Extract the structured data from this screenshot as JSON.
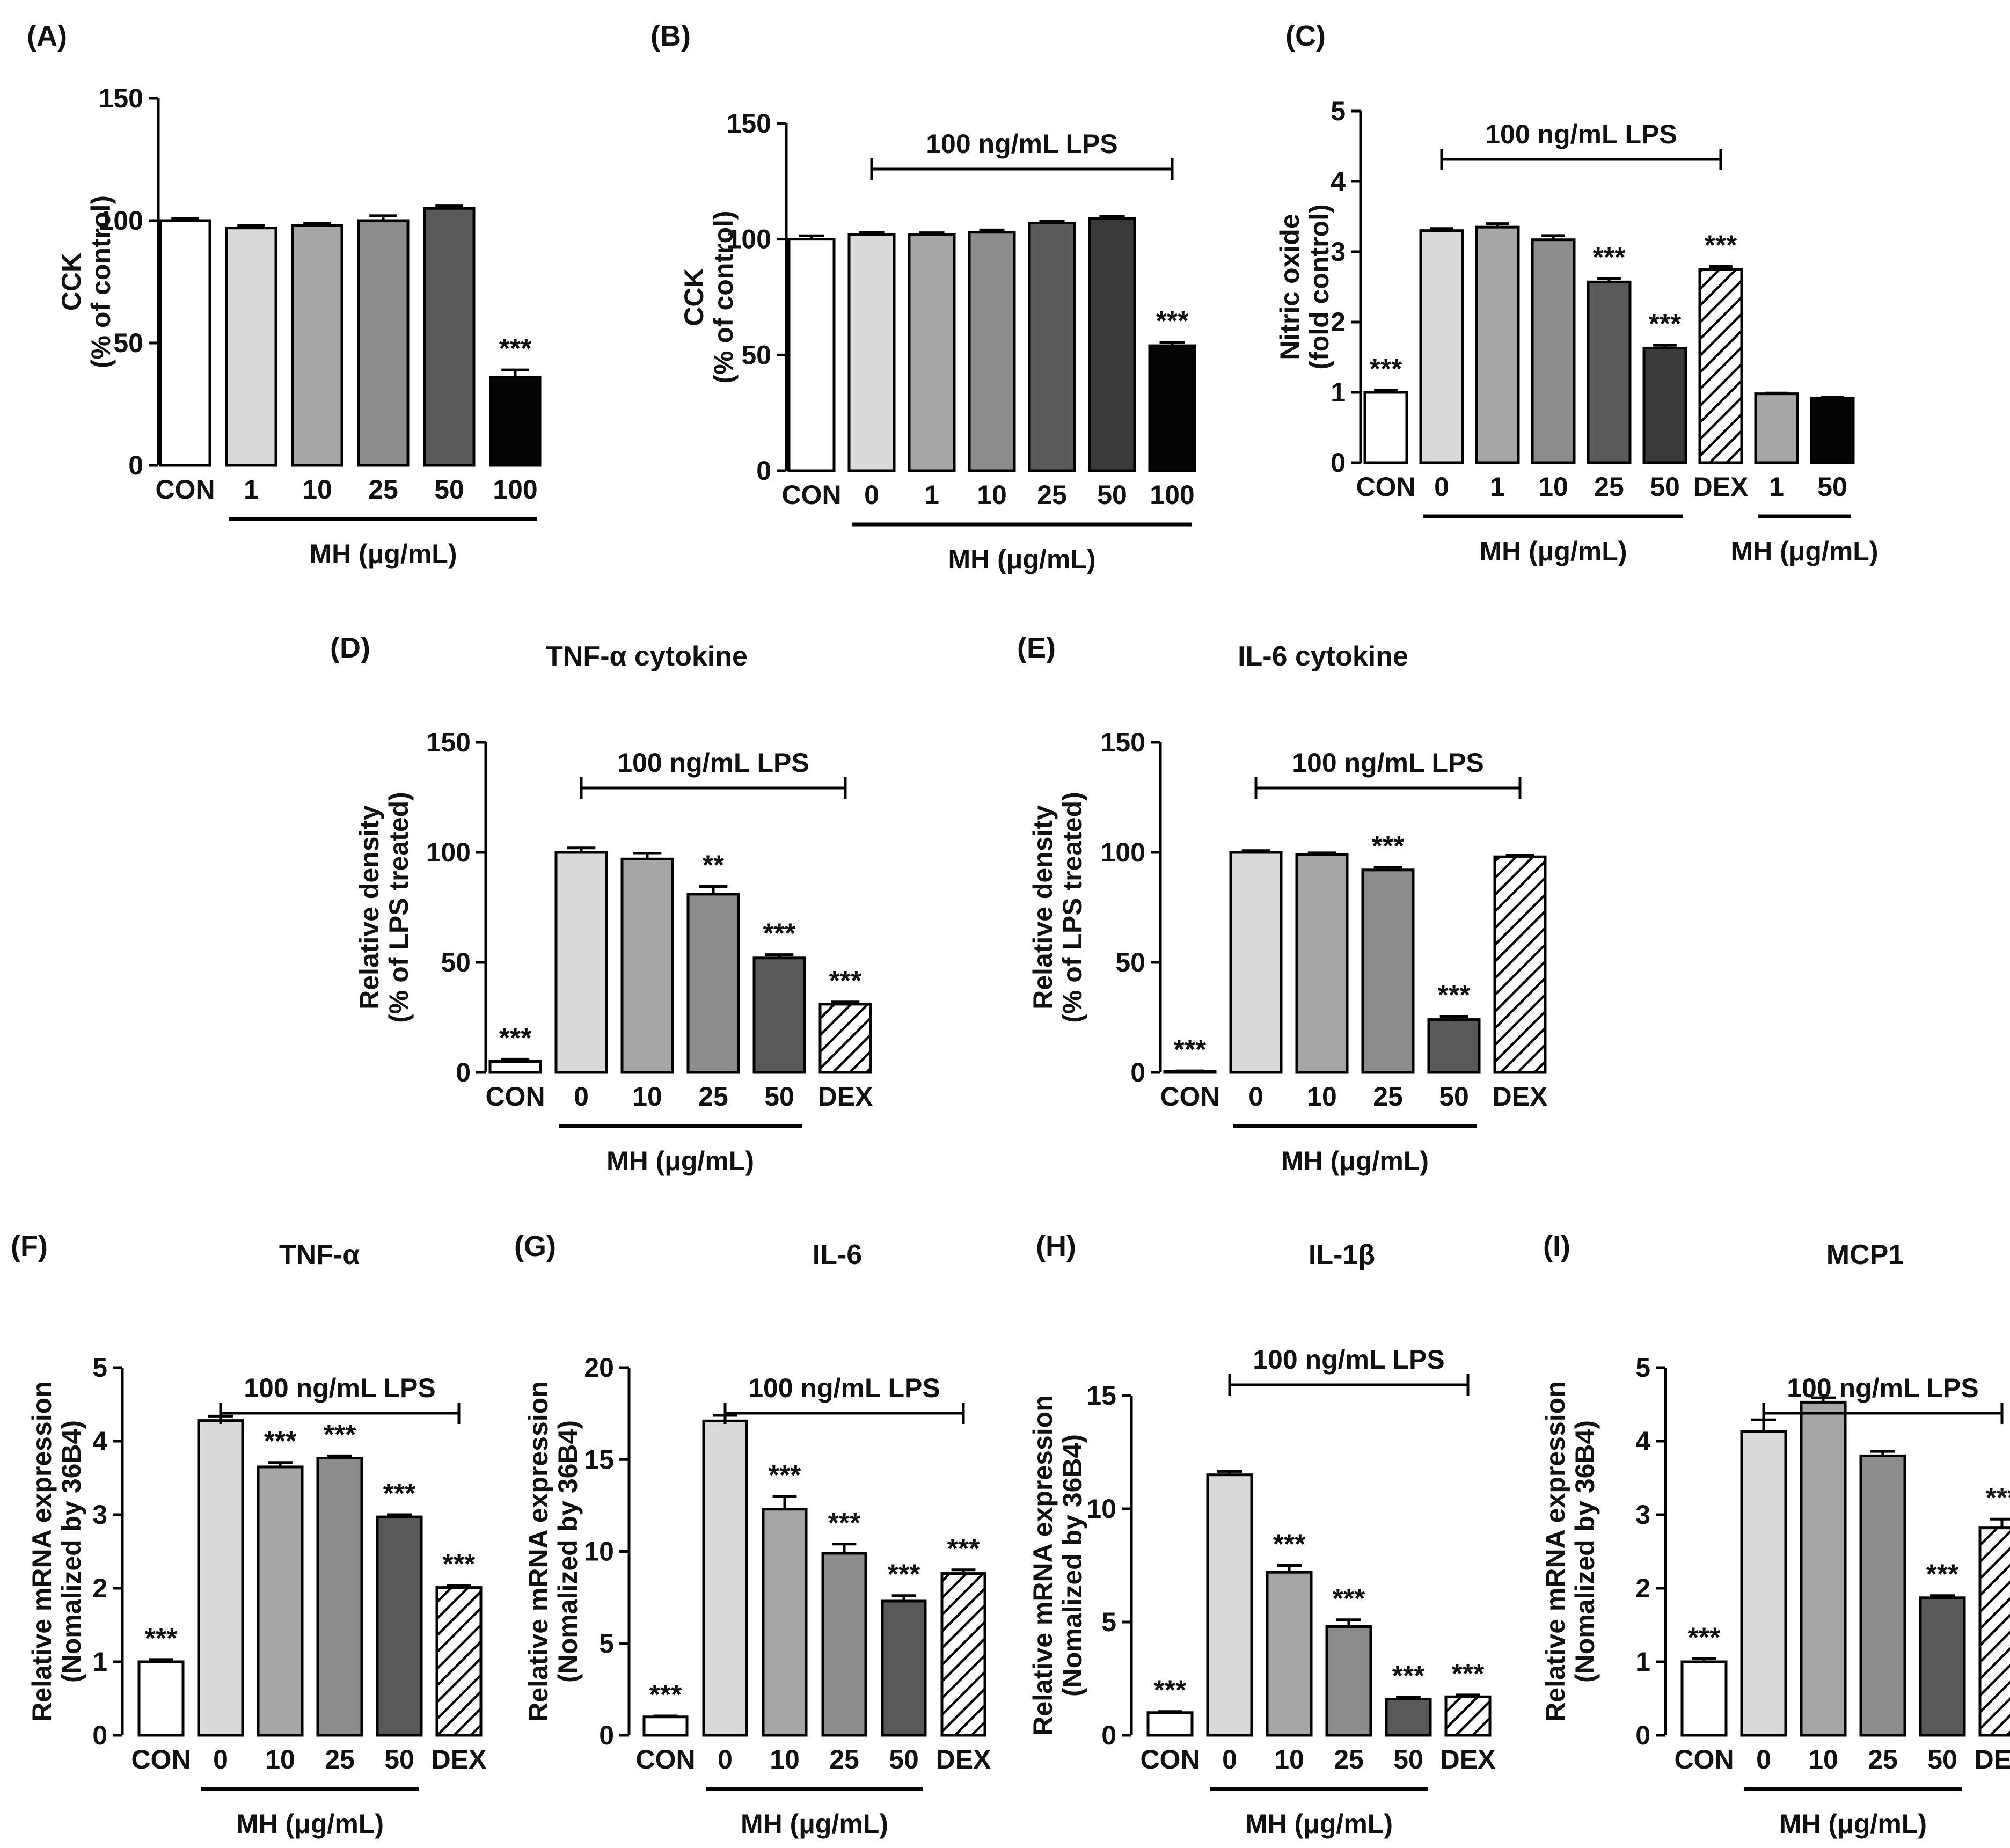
{
  "figure_title": "",
  "colors": {
    "white": "#ffffff",
    "light_gray": "#d9d9d9",
    "mid_gray": "#a6a6a6",
    "gray": "#8c8c8c",
    "dark_gray": "#595959",
    "darker_gray": "#3a3a3a",
    "black": "#050505",
    "axis": "#000000"
  },
  "chart_data": [
    {
      "panel": "(A)",
      "type": "bar",
      "title": "",
      "ylabel_line1": "CCK",
      "ylabel_line2": "(% of control)",
      "ylim": [
        0,
        150
      ],
      "yticks": [
        "0",
        "50",
        "100",
        "150"
      ],
      "categories": [
        "CON",
        "1",
        "10",
        "25",
        "50",
        "100"
      ],
      "values": [
        100,
        97,
        98,
        100,
        105,
        36
      ],
      "errors": [
        1,
        1,
        1,
        2,
        1,
        3
      ],
      "significance": [
        "",
        "",
        "",
        "",
        "",
        "***"
      ],
      "bar_fill": [
        "white",
        "light_gray",
        "mid_gray",
        "gray",
        "dark_gray",
        "black"
      ],
      "xgroup_label": "MH (μg/mL)",
      "xgroup_span": [
        1,
        5
      ],
      "treatment_label": "",
      "treatment_span": null
    },
    {
      "panel": "(B)",
      "type": "bar",
      "title": "",
      "ylabel_line1": "CCK",
      "ylabel_line2": "(% of control)",
      "ylim": [
        0,
        150
      ],
      "yticks": [
        "0",
        "50",
        "100",
        "150"
      ],
      "categories": [
        "CON",
        "0",
        "1",
        "10",
        "25",
        "50",
        "100"
      ],
      "values": [
        100,
        102,
        102,
        103,
        107,
        109,
        54
      ],
      "errors": [
        1.5,
        1,
        0.8,
        1,
        0.8,
        0.8,
        1.5
      ],
      "significance": [
        "",
        "",
        "",
        "",
        "",
        "",
        "***"
      ],
      "bar_fill": [
        "white",
        "light_gray",
        "mid_gray",
        "gray",
        "dark_gray",
        "darker_gray",
        "black"
      ],
      "xgroup_label": "MH (μg/mL)",
      "xgroup_span": [
        1,
        6
      ],
      "treatment_label": "100 ng/mL LPS",
      "treatment_span": [
        1,
        6
      ]
    },
    {
      "panel": "(C)",
      "type": "bar",
      "title": "",
      "ylabel_line1": "Nitric oxide",
      "ylabel_line2": "(fold control)",
      "ylim": [
        0,
        5
      ],
      "yticks": [
        "0",
        "1",
        "2",
        "3",
        "4",
        "5"
      ],
      "categories": [
        "CON",
        "0",
        "1",
        "10",
        "25",
        "50",
        "DEX",
        "1",
        "50"
      ],
      "values": [
        1.0,
        3.3,
        3.35,
        3.17,
        2.57,
        1.63,
        2.75,
        0.98,
        0.92
      ],
      "errors": [
        0.03,
        0.03,
        0.05,
        0.06,
        0.05,
        0.04,
        0.04,
        0.01,
        0.01
      ],
      "significance": [
        "***",
        "",
        "",
        "",
        "***",
        "***",
        "***",
        "",
        ""
      ],
      "bar_fill": [
        "white",
        "light_gray",
        "mid_gray",
        "gray",
        "dark_gray",
        "darker_gray",
        "hatch",
        "mid_gray",
        "black"
      ],
      "xgroup_label": "MH (μg/mL)",
      "xgroup_span": [
        1,
        5
      ],
      "xgroup2_label": "MH (μg/mL)",
      "xgroup2_span": [
        7,
        8
      ],
      "treatment_label": "100 ng/mL LPS",
      "treatment_span": [
        1,
        6
      ]
    },
    {
      "panel": "(D)",
      "type": "bar",
      "title": "TNF-α cytokine",
      "ylabel_line1": "Relative density",
      "ylabel_line2": "(% of LPS treated)",
      "ylim": [
        0,
        150
      ],
      "yticks": [
        "0",
        "50",
        "100",
        "150"
      ],
      "categories": [
        "CON",
        "0",
        "10",
        "25",
        "50",
        "DEX"
      ],
      "values": [
        5,
        100,
        97,
        81,
        52,
        31
      ],
      "errors": [
        1,
        2,
        2.5,
        3.5,
        1.5,
        1
      ],
      "significance": [
        "***",
        "",
        "",
        "**",
        "***",
        "***"
      ],
      "bar_fill": [
        "white",
        "light_gray",
        "mid_gray",
        "gray",
        "dark_gray",
        "hatch"
      ],
      "xgroup_label": "MH (μg/mL)",
      "xgroup_span": [
        1,
        4
      ],
      "treatment_label": "100 ng/mL LPS",
      "treatment_span": [
        1,
        5
      ]
    },
    {
      "panel": "(E)",
      "type": "bar",
      "title": "IL-6 cytokine",
      "ylabel_line1": "Relative density",
      "ylabel_line2": "(% of LPS treated)",
      "ylim": [
        0,
        150
      ],
      "yticks": [
        "0",
        "50",
        "100",
        "150"
      ],
      "categories": [
        "CON",
        "0",
        "10",
        "25",
        "50",
        "DEX"
      ],
      "values": [
        0.5,
        100,
        99,
        92,
        24,
        98
      ],
      "errors": [
        0.2,
        0.8,
        0.8,
        1.2,
        1.5,
        0.5
      ],
      "significance": [
        "***",
        "",
        "",
        "***",
        "***",
        ""
      ],
      "bar_fill": [
        "white",
        "light_gray",
        "mid_gray",
        "gray",
        "dark_gray",
        "hatch"
      ],
      "xgroup_label": "MH (μg/mL)",
      "xgroup_span": [
        1,
        4
      ],
      "treatment_label": "100 ng/mL LPS",
      "treatment_span": [
        1,
        5
      ]
    },
    {
      "panel": "(F)",
      "type": "bar",
      "title": "TNF-α",
      "ylabel_line1": "Relative mRNA expression",
      "ylabel_line2": "(Nomalized by 36B4)",
      "ylim": [
        0,
        5
      ],
      "yticks": [
        "0",
        "1",
        "2",
        "3",
        "4",
        "5"
      ],
      "categories": [
        "CON",
        "0",
        "10",
        "25",
        "50",
        "DEX"
      ],
      "values": [
        1.0,
        4.28,
        3.65,
        3.77,
        2.97,
        2.01
      ],
      "errors": [
        0.03,
        0.06,
        0.06,
        0.03,
        0.03,
        0.03
      ],
      "significance": [
        "***",
        "",
        "***",
        "***",
        "***",
        "***"
      ],
      "bar_fill": [
        "white",
        "light_gray",
        "mid_gray",
        "gray",
        "dark_gray",
        "hatch"
      ],
      "xgroup_label": "MH (μg/mL)",
      "xgroup_span": [
        1,
        4
      ],
      "treatment_label": "100 ng/mL LPS",
      "treatment_span": [
        1,
        5
      ]
    },
    {
      "panel": "(G)",
      "type": "bar",
      "title": "IL-6",
      "ylabel_line1": "Relative mRNA expression",
      "ylabel_line2": "(Nomalized by 36B4)",
      "ylim": [
        0,
        20
      ],
      "yticks": [
        "0",
        "5",
        "10",
        "15",
        "20"
      ],
      "categories": [
        "CON",
        "0",
        "10",
        "25",
        "50",
        "DEX"
      ],
      "values": [
        1.0,
        17.1,
        12.3,
        9.9,
        7.3,
        8.8
      ],
      "errors": [
        0.05,
        0.3,
        0.7,
        0.5,
        0.3,
        0.2
      ],
      "significance": [
        "***",
        "",
        "***",
        "***",
        "***",
        "***"
      ],
      "bar_fill": [
        "white",
        "light_gray",
        "mid_gray",
        "gray",
        "dark_gray",
        "hatch"
      ],
      "xgroup_label": "MH (μg/mL)",
      "xgroup_span": [
        1,
        4
      ],
      "treatment_label": "100 ng/mL LPS",
      "treatment_span": [
        1,
        5
      ]
    },
    {
      "panel": "(H)",
      "type": "bar",
      "title": "IL-1β",
      "ylabel_line1": "Relative mRNA expression",
      "ylabel_line2": "(Nomalized by 36B4)",
      "ylim": [
        0,
        15
      ],
      "yticks": [
        "0",
        "5",
        "10",
        "15"
      ],
      "categories": [
        "CON",
        "0",
        "10",
        "25",
        "50",
        "DEX"
      ],
      "values": [
        1.0,
        11.5,
        7.2,
        4.8,
        1.6,
        1.7
      ],
      "errors": [
        0.05,
        0.15,
        0.3,
        0.3,
        0.08,
        0.08
      ],
      "significance": [
        "***",
        "",
        "***",
        "***",
        "***",
        "***"
      ],
      "bar_fill": [
        "white",
        "light_gray",
        "mid_gray",
        "gray",
        "dark_gray",
        "hatch"
      ],
      "xgroup_label": "MH (μg/mL)",
      "xgroup_span": [
        1,
        4
      ],
      "treatment_label": "100 ng/mL LPS",
      "treatment_span": [
        1,
        5
      ]
    },
    {
      "panel": "(I)",
      "type": "bar",
      "title": "MCP1",
      "ylabel_line1": "Relative mRNA expression",
      "ylabel_line2": "(Nomalized by 36B4)",
      "ylim": [
        0,
        5
      ],
      "yticks": [
        "0",
        "1",
        "2",
        "3",
        "4",
        "5"
      ],
      "categories": [
        "CON",
        "0",
        "10",
        "25",
        "50",
        "DEX"
      ],
      "values": [
        1.0,
        4.13,
        4.53,
        3.8,
        1.87,
        2.82
      ],
      "errors": [
        0.04,
        0.16,
        0.06,
        0.06,
        0.03,
        0.12
      ],
      "significance": [
        "***",
        "",
        "",
        "",
        "***",
        "***"
      ],
      "bar_fill": [
        "white",
        "light_gray",
        "mid_gray",
        "gray",
        "dark_gray",
        "hatch"
      ],
      "xgroup_label": "MH (μg/mL)",
      "xgroup_span": [
        1,
        4
      ],
      "treatment_label": "100 ng/mL LPS",
      "treatment_span": [
        1,
        5
      ]
    }
  ]
}
